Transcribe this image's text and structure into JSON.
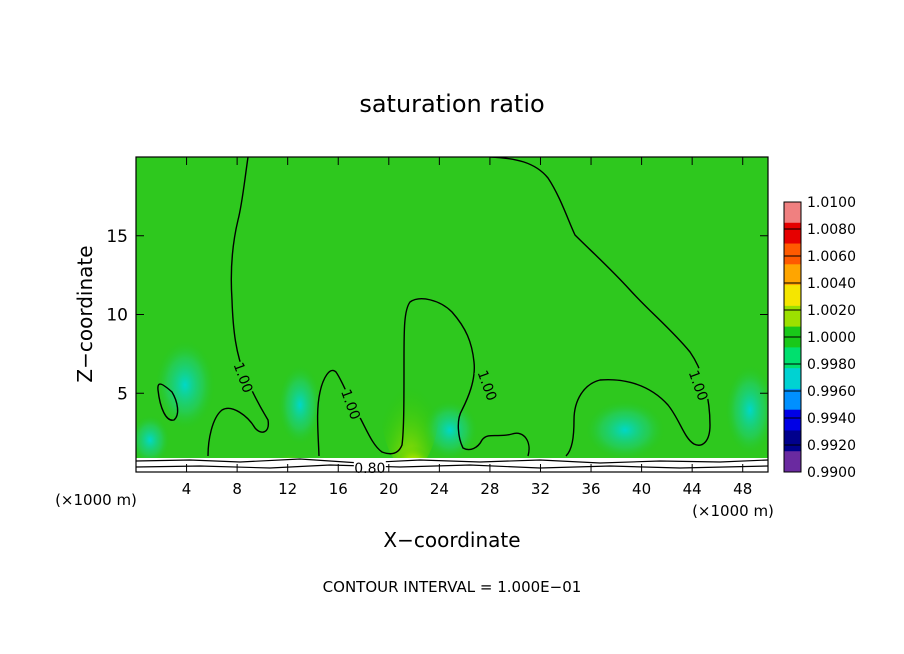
{
  "chart_data": {
    "type": "heatmap",
    "title": "saturation ratio",
    "xlabel": "X−coordinate",
    "ylabel": "Z−coordinate",
    "x_unit_left": "(×1000 m)",
    "x_unit_right": "(×1000 m)",
    "xlim": [
      0,
      50
    ],
    "ylim": [
      0,
      20
    ],
    "x_ticks": [
      4,
      8,
      12,
      16,
      20,
      24,
      28,
      32,
      36,
      40,
      44,
      48
    ],
    "y_ticks": [
      5,
      10,
      15
    ],
    "footer": "CONTOUR INTERVAL = 1.000E−01",
    "contour_labels": [
      {
        "text": "1.00",
        "x": 8.5,
        "y": 6.0
      },
      {
        "text": "1.00",
        "x": 17.0,
        "y": 4.3
      },
      {
        "text": "1.00",
        "x": 27.8,
        "y": 5.5
      },
      {
        "text": "1.00",
        "x": 44.5,
        "y": 5.5
      },
      {
        "text": "0.80",
        "x": 18.5,
        "y": 0.25
      }
    ],
    "colorbar": {
      "levels": [
        "1.0100",
        "1.0080",
        "1.0060",
        "1.0040",
        "1.0020",
        "1.0000",
        "0.9980",
        "0.9960",
        "0.9940",
        "0.9920",
        "0.9900"
      ],
      "colors": [
        "#f08080",
        "#e60000",
        "#ff5a00",
        "#ffa500",
        "#f5e600",
        "#9ce000",
        "#19c819",
        "#00e06e",
        "#00d2d2",
        "#0090ff",
        "#0000e6",
        "#00008c",
        "#6a2aa0"
      ]
    }
  }
}
